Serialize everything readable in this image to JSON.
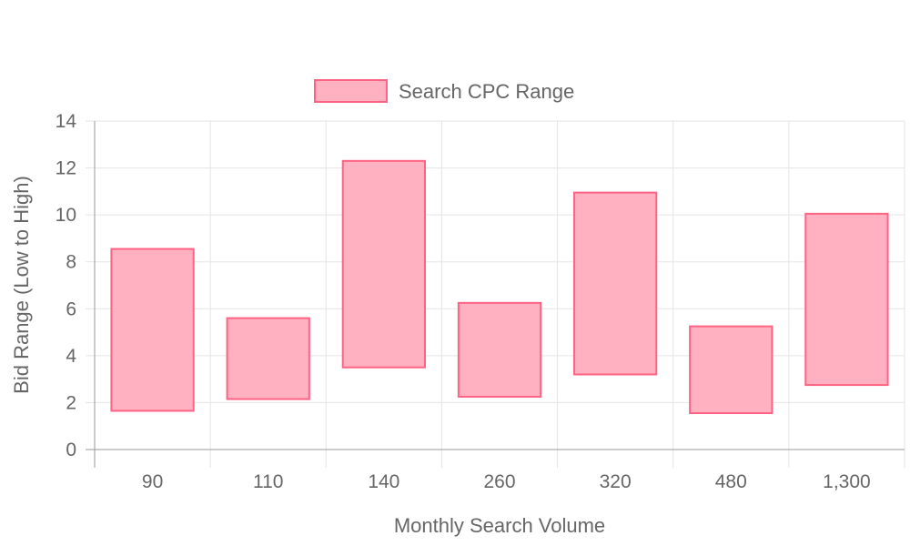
{
  "chart_data": {
    "type": "bar",
    "subtype": "floating-range",
    "xlabel": "Monthly Search Volume",
    "ylabel": "Bid Range (Low to High)",
    "categories": [
      "90",
      "110",
      "140",
      "260",
      "320",
      "480",
      "1,300"
    ],
    "series": [
      {
        "name": "Search CPC Range",
        "ranges": [
          [
            1.65,
            8.55
          ],
          [
            2.15,
            5.6
          ],
          [
            3.5,
            12.3
          ],
          [
            2.25,
            6.25
          ],
          [
            3.2,
            10.95
          ],
          [
            1.55,
            5.25
          ],
          [
            2.75,
            10.05
          ]
        ]
      }
    ],
    "ylim": [
      0,
      14
    ],
    "yticks": [
      "0",
      "2",
      "4",
      "6",
      "8",
      "10",
      "12",
      "14"
    ],
    "grid": true,
    "legend_position": "top",
    "colors": {
      "bar_fill": "#ffb1c1",
      "bar_stroke": "#ff6384",
      "grid": "#e5e5e5",
      "axis": "#999999",
      "text": "#666666"
    }
  }
}
